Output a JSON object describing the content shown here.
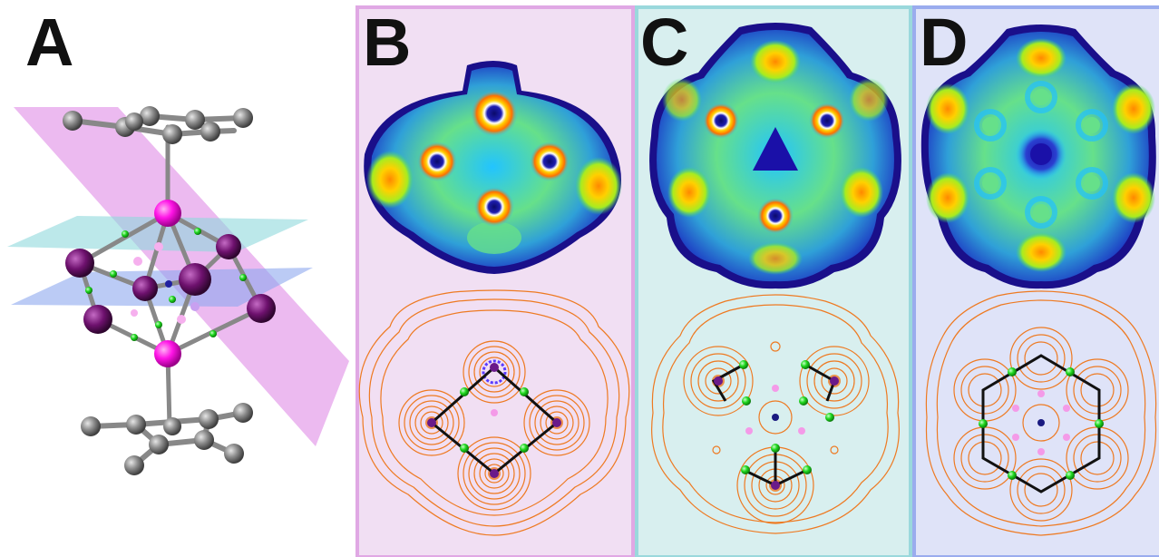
{
  "panels": [
    {
      "label": "A",
      "tint": ""
    },
    {
      "label": "B",
      "tint": "#f1dff3"
    },
    {
      "label": "C",
      "tint": "#d8efef"
    },
    {
      "label": "D",
      "tint": "#dfe3f8"
    }
  ],
  "colors": {
    "carbon": "#8a8a8a",
    "metal_pink": "#ff10e6",
    "metal_purple": "#7a157a",
    "critical_point": "#1fd81f",
    "plane_pink": "#e08ce6",
    "plane_cyan": "#8fd8dc",
    "plane_blue": "#8ea8ee",
    "contour": "#ee7a22",
    "bond_path": "#111111"
  }
}
